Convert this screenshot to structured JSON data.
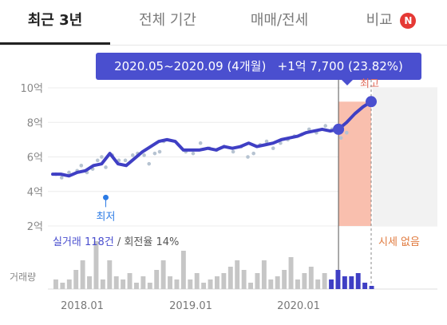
{
  "tabs": [
    {
      "label": "최근 3년",
      "active": true
    },
    {
      "label": "전체 기간",
      "active": false
    },
    {
      "label": "매매/전세",
      "active": false
    },
    {
      "label": "비교",
      "active": false,
      "badge": "N"
    }
  ],
  "tooltip": {
    "period": "2020.05~2020.09 (4개월)",
    "change": "+1억 7,700 (23.82%)"
  },
  "markers": {
    "high": "최고",
    "low": "최저"
  },
  "stats": {
    "prefix": "실거래 118건",
    "suffix": " / 회전율 14%"
  },
  "no_price": "시세 없음",
  "volume_label": "거래량",
  "colors": {
    "line": "#3f3fc4",
    "accent": "#4a4fcf",
    "dots": "#b6c3d1",
    "high_fill": "#f9bfae",
    "low_marker": "#2c7be5",
    "no_price": "#e07a3e"
  },
  "chart_data": {
    "type": "line",
    "ylabel": "",
    "ylim": [
      2,
      10
    ],
    "y_ticks": [
      "2억",
      "4억",
      "6억",
      "8억",
      "10억"
    ],
    "x_ticks": [
      "2018.01",
      "2019.01",
      "2020.01"
    ],
    "series": [
      {
        "name": "",
        "values": [
          5.0,
          5.0,
          4.9,
          5.1,
          5.2,
          5.5,
          5.6,
          6.2,
          5.6,
          5.5,
          5.9,
          6.3,
          6.6,
          6.9,
          7.0,
          6.9,
          6.4,
          6.4,
          6.4,
          6.5,
          6.4,
          6.6,
          6.5,
          6.6,
          6.8,
          6.6,
          6.7,
          6.8,
          7.0,
          7.1,
          7.2,
          7.4,
          7.5,
          7.6,
          7.5,
          7.6,
          8.0,
          8.5,
          8.9,
          9.2
        ]
      }
    ],
    "low_point": {
      "label": "최저",
      "y": 3.65
    },
    "high_point": {
      "label": "최고",
      "y": 9.2
    },
    "transactions": [
      [
        0.4,
        5.0
      ],
      [
        1.1,
        4.8
      ],
      [
        2.0,
        5.1
      ],
      [
        3.0,
        5.2
      ],
      [
        3.5,
        5.5
      ],
      [
        4.2,
        5.1
      ],
      [
        4.9,
        5.3
      ],
      [
        5.5,
        5.8
      ],
      [
        6.0,
        6.0
      ],
      [
        6.5,
        5.4
      ],
      [
        7.3,
        6.1
      ],
      [
        8.1,
        5.8
      ],
      [
        8.9,
        5.8
      ],
      [
        9.8,
        6.1
      ],
      [
        10.4,
        6.2
      ],
      [
        11.2,
        6.1
      ],
      [
        11.8,
        5.6
      ],
      [
        12.5,
        6.2
      ],
      [
        13.1,
        6.3
      ],
      [
        13.6,
        6.9
      ],
      [
        16.3,
        6.3
      ],
      [
        17.2,
        6.2
      ],
      [
        18.1,
        6.8
      ],
      [
        19.2,
        6.5
      ],
      [
        20.1,
        6.4
      ],
      [
        21.0,
        6.6
      ],
      [
        22.1,
        6.3
      ],
      [
        23.1,
        6.6
      ],
      [
        23.9,
        6.0
      ],
      [
        24.6,
        6.2
      ],
      [
        25.4,
        6.7
      ],
      [
        26.2,
        6.9
      ],
      [
        27.0,
        6.5
      ],
      [
        27.9,
        6.8
      ],
      [
        28.8,
        7.0
      ],
      [
        29.6,
        7.2
      ],
      [
        30.5,
        7.3
      ],
      [
        31.4,
        7.6
      ],
      [
        32.3,
        7.4
      ],
      [
        33.4,
        7.8
      ],
      [
        34.2,
        7.6
      ],
      [
        35.3,
        7.1
      ],
      [
        36.0,
        7.4
      ]
    ],
    "volume": [
      0.3,
      0.2,
      0.3,
      0.6,
      0.9,
      0.4,
      1.5,
      0.3,
      0.9,
      0.4,
      0.3,
      0.5,
      0.2,
      0.4,
      0.2,
      0.6,
      0.9,
      0.4,
      0.3,
      1.2,
      0.3,
      0.5,
      0.2,
      0.3,
      0.4,
      0.5,
      0.7,
      0.9,
      0.6,
      0.2,
      0.5,
      0.9,
      0.3,
      0.4,
      0.6,
      1.0,
      0.3,
      0.5,
      0.7,
      0.3,
      0.5,
      0.3,
      0.6,
      0.4,
      0.4,
      0.5,
      0.2,
      0.1
    ]
  }
}
